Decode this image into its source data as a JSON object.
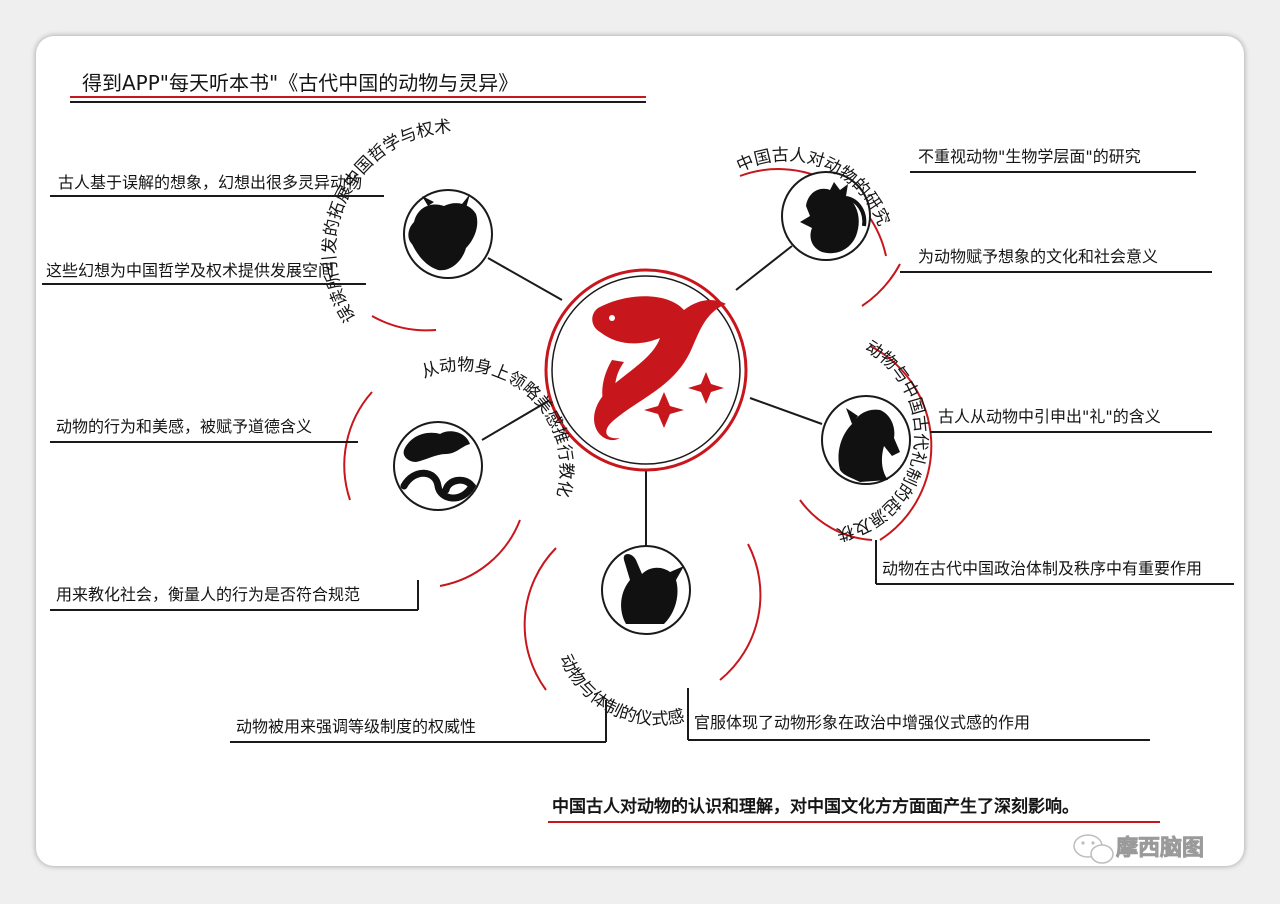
{
  "title": "得到APP\"每天听本书\"《古代中国的动物与灵异》",
  "center_icon": "red-dragon-icon",
  "branches": [
    {
      "id": "imagination",
      "icon": "ox-icon",
      "arc_label": "误读所引发的拓展中国哲学与权术",
      "notes": [
        "古人基于误解的想象，幻想出很多灵异动物",
        "这些幻想为中国哲学及权术提供发展空间"
      ]
    },
    {
      "id": "research",
      "icon": "rooster-icon",
      "arc_label": "中国古人对动物的研究",
      "notes": [
        "不重视动物\"生物学层面\"的研究",
        "为动物赋予想象的文化和社会意义"
      ]
    },
    {
      "id": "rites",
      "icon": "horse-icon",
      "arc_label": "动物与中国古代礼制的起源及秩序",
      "notes": [
        "古人从动物中引申出\"礼\"的含义",
        "动物在古代中国政治体制及秩序中有重要作用"
      ]
    },
    {
      "id": "ritual",
      "icon": "rabbit-icon",
      "arc_label": "动物与体制的仪式感",
      "notes": [
        "动物被用来强调等级制度的权威性",
        "官服体现了动物形象在政治中增强仪式感的作用"
      ]
    },
    {
      "id": "morality",
      "icon": "snake-tiger-icon",
      "arc_label": "从动物身上领略美感推行教化",
      "notes": [
        "动物的行为和美感，被赋予道德含义",
        "用来教化社会，衡量人的行为是否符合规范"
      ]
    }
  ],
  "summary": "中国古人对动物的认识和理解，对中国文化方方面面产生了深刻影响。",
  "watermark": "摩西脑图",
  "colors": {
    "accent": "#c8161d",
    "ink": "#1a1a1a"
  }
}
